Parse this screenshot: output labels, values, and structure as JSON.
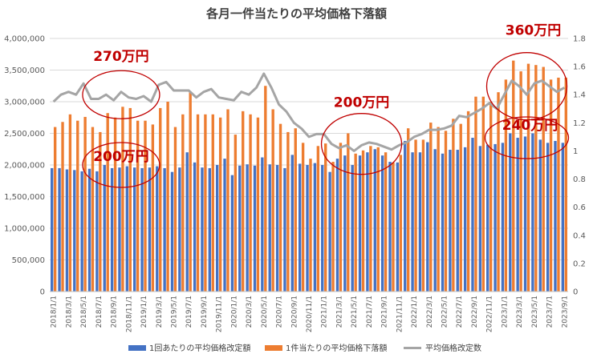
{
  "chart_data": {
    "type": "bar",
    "title": "各月一件当たりの平均価格下落額",
    "x": [
      "2018/1/1",
      "2018/2/1",
      "2018/3/1",
      "2018/4/1",
      "2018/5/1",
      "2018/6/1",
      "2018/7/1",
      "2018/8/1",
      "2018/9/1",
      "2018/10/1",
      "2018/11/1",
      "2018/12/1",
      "2019/1/1",
      "2019/2/1",
      "2019/3/1",
      "2019/4/1",
      "2019/5/1",
      "2019/6/1",
      "2019/7/1",
      "2019/8/1",
      "2019/9/1",
      "2019/10/1",
      "2019/11/1",
      "2019/12/1",
      "2020/1/1",
      "2020/2/1",
      "2020/3/1",
      "2020/4/1",
      "2020/5/1",
      "2020/6/1",
      "2020/7/1",
      "2020/8/1",
      "2020/9/1",
      "2020/10/1",
      "2020/11/1",
      "2020/12/1",
      "2021/1/1",
      "2021/2/1",
      "2021/3/1",
      "2021/4/1",
      "2021/5/1",
      "2021/6/1",
      "2021/7/1",
      "2021/8/1",
      "2021/9/1",
      "2021/10/1",
      "2021/11/1",
      "2021/12/1",
      "2022/1/1",
      "2022/2/1",
      "2022/3/1",
      "2022/4/1",
      "2022/5/1",
      "2022/6/1",
      "2022/7/1",
      "2022/8/1",
      "2022/9/1",
      "2022/10/1",
      "2022/11/1",
      "2022/12/1",
      "2023/1/1",
      "2023/2/1",
      "2023/3/1",
      "2023/4/1",
      "2023/5/1",
      "2023/6/1",
      "2023/7/1",
      "2023/8/1",
      "2023/9/1"
    ],
    "x_tick_labels": [
      "2018/1/1",
      "2018/3/1",
      "2018/5/1",
      "2018/7/1",
      "2018/9/1",
      "2018/11/1",
      "2019/1/1",
      "2019/3/1",
      "2019/5/1",
      "2019/7/1",
      "2019/9/1",
      "2019/11/1",
      "2020/1/1",
      "2020/3/1",
      "2020/5/1",
      "2020/7/1",
      "2020/9/1",
      "2020/11/1",
      "2021/1/1",
      "2021/3/1",
      "2021/5/1",
      "2021/7/1",
      "2021/9/1",
      "2021/11/1",
      "2022/1/1",
      "2022/3/1",
      "2022/5/1",
      "2022/7/1",
      "2022/9/1",
      "2022/11/1",
      "2023/1/1",
      "2023/3/1",
      "2023/5/1",
      "2023/7/1",
      "2023/9/1"
    ],
    "series": [
      {
        "name": "1回あたりの平均価格改定額",
        "axis": "left",
        "color": "#4472c4",
        "values": [
          1950000,
          1950000,
          1930000,
          1920000,
          1900000,
          1940000,
          1900000,
          2000000,
          1950000,
          1960000,
          1980000,
          1960000,
          1950000,
          1960000,
          1980000,
          1950000,
          1890000,
          1960000,
          2200000,
          2040000,
          1960000,
          1950000,
          2000000,
          2100000,
          1840000,
          1990000,
          2010000,
          1990000,
          2120000,
          2010000,
          2000000,
          1950000,
          2160000,
          2020000,
          2000000,
          2030000,
          2000000,
          1890000,
          2100000,
          2150000,
          2000000,
          2150000,
          2200000,
          2250000,
          2150000,
          2050000,
          2040000,
          2380000,
          2200000,
          2200000,
          2360000,
          2250000,
          2180000,
          2240000,
          2240000,
          2280000,
          2430000,
          2300000,
          2320000,
          2330000,
          2350000,
          2500000,
          2430000,
          2450000,
          2500000,
          2400000,
          2350000,
          2380000,
          2350000
        ]
      },
      {
        "name": "1件当たりの平均価格下落額",
        "axis": "left",
        "color": "#ed7d31",
        "values": [
          2600000,
          2680000,
          2800000,
          2700000,
          2760000,
          2600000,
          2520000,
          2820000,
          2750000,
          2920000,
          2900000,
          2700000,
          2700000,
          2640000,
          2900000,
          3000000,
          2600000,
          2800000,
          3150000,
          2800000,
          2800000,
          2800000,
          2750000,
          2880000,
          2480000,
          2850000,
          2800000,
          2750000,
          3250000,
          2880000,
          2650000,
          2520000,
          2580000,
          2350000,
          2100000,
          2300000,
          2340000,
          2050000,
          2350000,
          2500000,
          2180000,
          2230000,
          2300000,
          2280000,
          2200000,
          2040000,
          2160000,
          2580000,
          2400000,
          2400000,
          2670000,
          2600000,
          2540000,
          2730000,
          2650000,
          2850000,
          3080000,
          3080000,
          3000000,
          3150000,
          3350000,
          3650000,
          3480000,
          3600000,
          3580000,
          3550000,
          3350000,
          3380000,
          3380000
        ]
      },
      {
        "name": "平均価格改定数",
        "axis": "right",
        "color": "#a5a5a5",
        "values": [
          1.35,
          1.4,
          1.42,
          1.4,
          1.48,
          1.37,
          1.37,
          1.4,
          1.36,
          1.42,
          1.38,
          1.37,
          1.39,
          1.35,
          1.47,
          1.49,
          1.43,
          1.43,
          1.43,
          1.38,
          1.42,
          1.44,
          1.38,
          1.37,
          1.36,
          1.42,
          1.4,
          1.45,
          1.55,
          1.45,
          1.33,
          1.28,
          1.2,
          1.16,
          1.1,
          1.12,
          1.12,
          1.05,
          1.02,
          1.04,
          1.0,
          1.04,
          1.06,
          1.05,
          1.03,
          1.01,
          1.04,
          1.06,
          1.1,
          1.12,
          1.15,
          1.15,
          1.16,
          1.18,
          1.25,
          1.24,
          1.27,
          1.3,
          1.34,
          1.3,
          1.4,
          1.5,
          1.46,
          1.4,
          1.48,
          1.5,
          1.46,
          1.42,
          1.45
        ]
      }
    ],
    "y_left": {
      "min": 0,
      "max": 4000000,
      "step": 500000,
      "tick_labels": [
        "0",
        "500,000",
        "1,000,000",
        "1,500,000",
        "2,000,000",
        "2,500,000",
        "3,000,000",
        "3,500,000",
        "4,000,000"
      ]
    },
    "y_right": {
      "min": 0,
      "max": 1.8,
      "step": 0.2,
      "tick_labels": [
        "0",
        "0.2",
        "0.4",
        "0.6",
        "0.8",
        "1",
        "1.2",
        "1.4",
        "1.6",
        "1.8"
      ]
    },
    "grid": "horizontal",
    "legend": "bottom-center",
    "annotations": [
      {
        "text": "270万円",
        "ellipse_center_x": "2018/10/1",
        "ellipse_center_y_right": 1.4
      },
      {
        "text": "200万円",
        "ellipse_center_x": "2018/10/1",
        "ellipse_center_y_left": 2000000
      },
      {
        "text": "200万円",
        "ellipse_center_x": "2021/6/1",
        "ellipse_center_y_right": 1.05
      },
      {
        "text": "360万円",
        "ellipse_center_x": "2023/4/1",
        "ellipse_center_y_right": 1.46
      },
      {
        "text": "240万円",
        "ellipse_center_x": "2023/4/1",
        "ellipse_center_y_left": 2430000
      }
    ]
  }
}
